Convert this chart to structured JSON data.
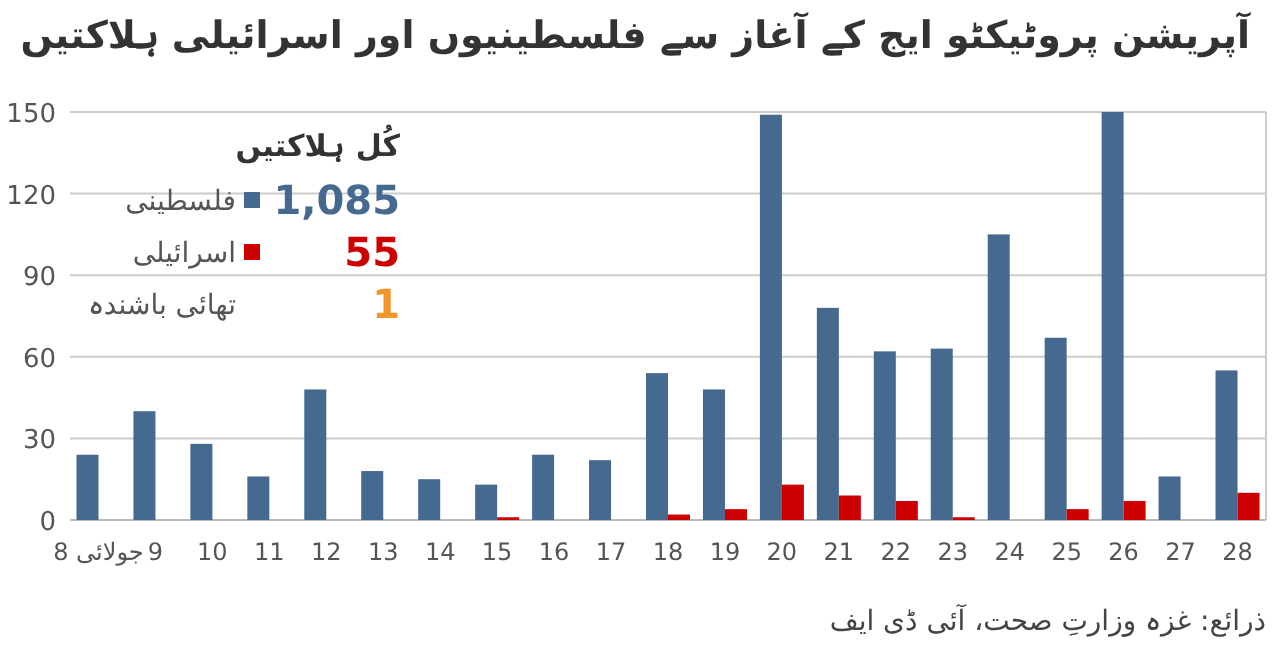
{
  "chart_data": {
    "type": "bar",
    "title": "آپریشن پروٹیکٹو ایج کے آغاز سے فلسطینیوں اور اسرائیلی ہلاکتیں",
    "categories": [
      "8 جولائی",
      "9",
      "10",
      "11",
      "12",
      "13",
      "14",
      "15",
      "16",
      "17",
      "18",
      "19",
      "20",
      "21",
      "22",
      "23",
      "24",
      "25",
      "26",
      "27",
      "28"
    ],
    "series": [
      {
        "name": "فلسطینی",
        "color": "#46698f",
        "values": [
          24,
          40,
          28,
          16,
          48,
          18,
          15,
          13,
          24,
          22,
          54,
          48,
          149,
          78,
          62,
          63,
          105,
          67,
          150,
          16,
          55
        ]
      },
      {
        "name": "اسرائیلی",
        "color": "#cc0000",
        "values": [
          null,
          null,
          null,
          null,
          null,
          null,
          null,
          1,
          null,
          null,
          2,
          4,
          13,
          9,
          7,
          1,
          null,
          4,
          7,
          null,
          10
        ]
      }
    ],
    "ylim": [
      0,
      150
    ],
    "yticks": [
      0,
      30,
      60,
      90,
      120,
      150
    ],
    "grid": "y",
    "legend": "top left",
    "legend_title": "کُل ہلاکتیں",
    "annotations": [
      "1,085",
      "55",
      "تھائی باشندہ",
      "1",
      "ذرائع: غزہ وزارتِ صحت، آئی ڈی ایف"
    ]
  }
}
